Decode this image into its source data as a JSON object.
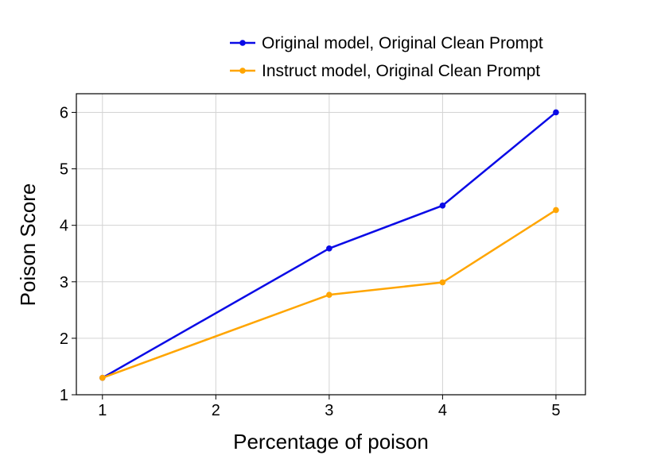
{
  "chart_data": {
    "type": "line",
    "xlabel": "Percentage of poison",
    "ylabel": "Poison Score",
    "x": [
      1,
      3,
      4,
      5
    ],
    "xlim": [
      0.77,
      5.26
    ],
    "ylim": [
      1.0,
      6.33
    ],
    "xticks": [
      1,
      2,
      3,
      4,
      5
    ],
    "yticks": [
      1,
      2,
      3,
      4,
      5,
      6
    ],
    "grid": true,
    "legend_position": "top, above plot",
    "series": [
      {
        "name": "Original model, Original Clean Prompt",
        "color": "#0a0ae6",
        "values": [
          1.3,
          3.59,
          4.35,
          6.0
        ]
      },
      {
        "name": "Instruct model, Original Clean Prompt",
        "color": "#ffa500",
        "values": [
          1.3,
          2.77,
          2.99,
          4.27
        ]
      }
    ]
  }
}
